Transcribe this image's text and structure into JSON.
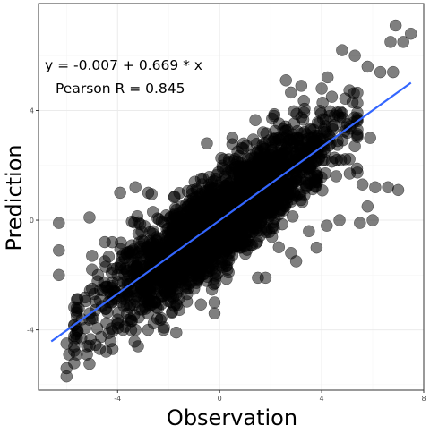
{
  "chart_data": {
    "type": "scatter",
    "title": "",
    "xlabel": "Observation",
    "ylabel": "Prediction",
    "xlim": [
      -7.1,
      8.0
    ],
    "ylim": [
      -6.2,
      7.9
    ],
    "xticks": [
      -4,
      0,
      4,
      8
    ],
    "xtick_labels": [
      "-4",
      "0",
      "4",
      "8"
    ],
    "yticks": [
      -4,
      0,
      4
    ],
    "ytick_labels": [
      "-4",
      "0",
      "4"
    ],
    "grid": true,
    "legend": "none",
    "point_color": "#000000",
    "point_opacity": 0.5,
    "fit_line": {
      "intercept": -0.007,
      "slope": 0.669,
      "x_range": [
        -6.6,
        7.5
      ],
      "color": "#3366ff"
    },
    "annotations": [
      "y = -0.007 + 0.669 * x",
      "Pearson R = 0.845"
    ],
    "extremes": [
      [
        6.9,
        7.1
      ],
      [
        7.5,
        6.8
      ],
      [
        7.2,
        6.5
      ],
      [
        6.7,
        6.5
      ],
      [
        4.8,
        6.2
      ],
      [
        5.3,
        6.0
      ],
      [
        5.8,
        5.6
      ],
      [
        6.3,
        5.4
      ],
      [
        6.8,
        5.4
      ],
      [
        2.6,
        5.1
      ],
      [
        3.2,
        4.9
      ],
      [
        4.0,
        4.8
      ],
      [
        4.4,
        4.5
      ],
      [
        5.9,
        3.0
      ],
      [
        5.3,
        2.7
      ],
      [
        4.1,
        3.2
      ],
      [
        4.6,
        2.2
      ],
      [
        5.1,
        1.7
      ],
      [
        5.6,
        1.3
      ],
      [
        6.1,
        1.2
      ],
      [
        6.6,
        1.2
      ],
      [
        7.0,
        1.1
      ],
      [
        5.8,
        0.5
      ],
      [
        6.0,
        0.0
      ],
      [
        5.5,
        -0.1
      ],
      [
        4.7,
        0.0
      ],
      [
        4.2,
        -0.2
      ],
      [
        3.5,
        -0.4
      ],
      [
        3.8,
        -1.0
      ],
      [
        3.0,
        -1.5
      ],
      [
        2.8,
        -1.2
      ],
      [
        1.8,
        -2.1
      ],
      [
        -6.3,
        -0.1
      ],
      [
        -6.3,
        -1.1
      ],
      [
        -6.3,
        -2.0
      ],
      [
        -5.1,
        0.1
      ],
      [
        -5.0,
        -1.3
      ],
      [
        -5.0,
        -1.8
      ],
      [
        -5.0,
        -2.5
      ],
      [
        -4.5,
        -0.8
      ],
      [
        -4.5,
        -1.5
      ],
      [
        -4.0,
        -2.0
      ],
      [
        -3.9,
        1.0
      ],
      [
        -3.3,
        1.2
      ],
      [
        -2.8,
        1.0
      ],
      [
        -5.6,
        -2.9
      ],
      [
        -5.6,
        -3.2
      ],
      [
        -5.6,
        -3.5
      ],
      [
        -5.6,
        -3.9
      ],
      [
        -5.6,
        -4.3
      ],
      [
        -5.6,
        -4.9
      ],
      [
        -5.9,
        -4.9
      ],
      [
        -6.0,
        -4.5
      ],
      [
        -6.0,
        -5.4
      ],
      [
        -6.0,
        -5.7
      ],
      [
        -5.2,
        -4.6
      ],
      [
        -5.2,
        -4.9
      ],
      [
        -4.7,
        -4.7
      ],
      [
        -4.2,
        -4.7
      ],
      [
        -3.3,
        -4.0
      ],
      [
        -3.2,
        -4.6
      ],
      [
        -2.2,
        -4.0
      ],
      [
        -1.7,
        -4.1
      ],
      [
        -0.2,
        -3.0
      ],
      [
        -0.2,
        -3.4
      ],
      [
        1.5,
        -2.1
      ],
      [
        -1.0,
        -2.5
      ],
      [
        -0.5,
        2.8
      ],
      [
        0.7,
        2.5
      ],
      [
        0.5,
        3.0
      ],
      [
        1.7,
        3.2
      ],
      [
        2.2,
        3.0
      ],
      [
        4.8,
        3.9
      ],
      [
        5.0,
        3.5
      ]
    ]
  }
}
